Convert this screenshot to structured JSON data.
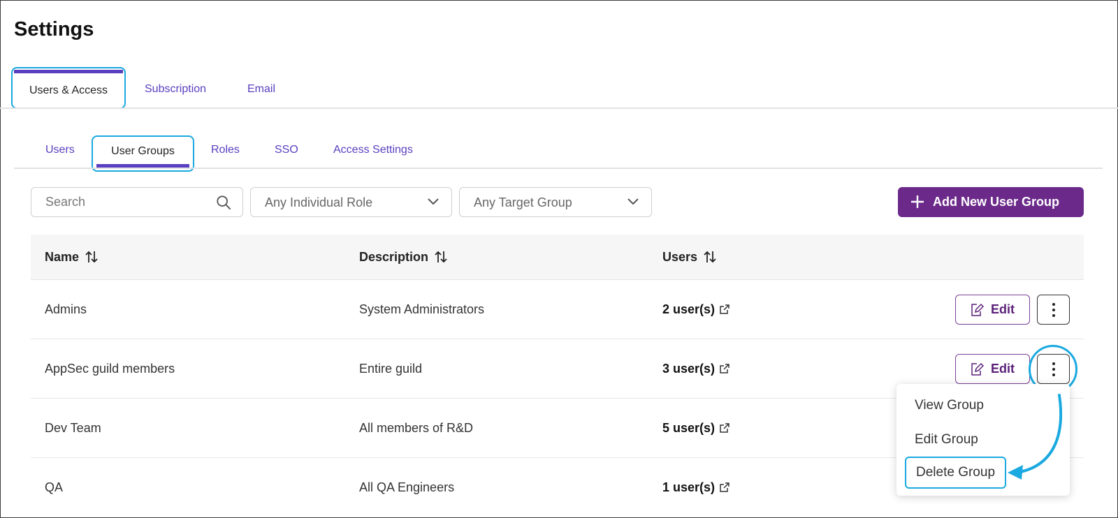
{
  "page": {
    "title": "Settings"
  },
  "top_tabs": [
    {
      "label": "Users & Access",
      "active": true
    },
    {
      "label": "Subscription",
      "active": false
    },
    {
      "label": "Email",
      "active": false
    }
  ],
  "sub_tabs": [
    {
      "label": "Users",
      "active": false
    },
    {
      "label": "User Groups",
      "active": true
    },
    {
      "label": "Roles",
      "active": false
    },
    {
      "label": "SSO",
      "active": false
    },
    {
      "label": "Access Settings",
      "active": false
    }
  ],
  "filters": {
    "search_placeholder": "Search",
    "role_select": "Any Individual Role",
    "target_select": "Any Target Group"
  },
  "actions": {
    "add_label": "Add New User Group"
  },
  "table": {
    "columns": [
      "Name",
      "Description",
      "Users"
    ],
    "rows": [
      {
        "name": "Admins",
        "description": "System Administrators",
        "users": "2 user(s)"
      },
      {
        "name": "AppSec guild members",
        "description": "Entire guild",
        "users": "3 user(s)"
      },
      {
        "name": "Dev Team",
        "description": "All members of R&D",
        "users": "5 user(s)"
      },
      {
        "name": "QA",
        "description": "All QA Engineers",
        "users": "1 user(s)"
      }
    ],
    "edit_label": "Edit"
  },
  "row_menu": {
    "items": [
      "View Group",
      "Edit Group",
      "Delete Group"
    ],
    "highlighted": "Delete Group"
  },
  "colors": {
    "accent": "#5a3fc0",
    "brand": "#6b2a8a",
    "highlight": "#1aa9e0"
  }
}
